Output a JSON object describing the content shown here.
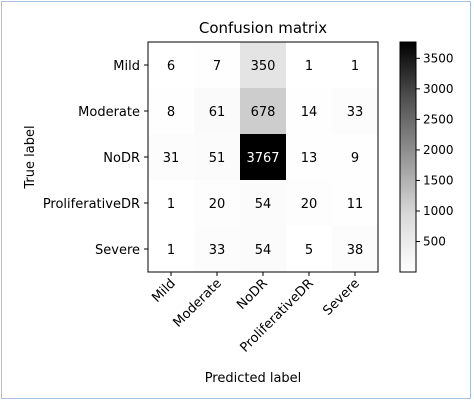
{
  "chart_data": {
    "type": "heatmap",
    "title": "Confusion matrix",
    "xlabel": "Predicted label",
    "ylabel": "True label",
    "row_labels": [
      "Mild",
      "Moderate",
      "NoDR",
      "ProliferativeDR",
      "Severe"
    ],
    "col_labels": [
      "Mild",
      "Moderate",
      "NoDR",
      "ProliferativeDR",
      "Severe"
    ],
    "values": [
      [
        6,
        7,
        350,
        1,
        1
      ],
      [
        8,
        61,
        678,
        14,
        33
      ],
      [
        31,
        51,
        3767,
        13,
        9
      ],
      [
        1,
        20,
        54,
        20,
        11
      ],
      [
        1,
        33,
        54,
        5,
        38
      ]
    ],
    "colormap": "Greys",
    "vmin": 1,
    "vmax": 3767,
    "colorbar_ticks": [
      500,
      1000,
      1500,
      2000,
      2500,
      3000,
      3500
    ]
  }
}
